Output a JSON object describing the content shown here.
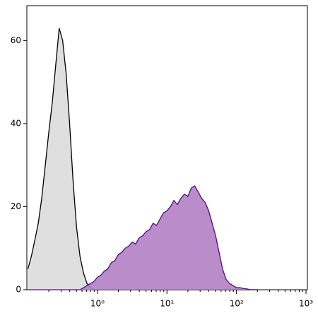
{
  "chart_data": {
    "type": "area",
    "x": [
      0.1,
      0.112,
      0.126,
      0.141,
      0.158,
      0.178,
      0.2,
      0.224,
      0.251,
      0.282,
      0.316,
      0.355,
      0.398,
      0.447,
      0.501,
      0.562,
      0.631,
      0.708,
      0.794,
      0.891,
      1,
      1.12,
      1.26,
      1.41,
      1.58,
      1.78,
      2,
      2.24,
      2.51,
      2.82,
      3.16,
      3.55,
      3.98,
      4.47,
      5.01,
      5.62,
      6.31,
      7.08,
      7.94,
      8.91,
      10,
      11.2,
      12.6,
      14.1,
      15.8,
      17.8,
      20,
      22.4,
      25.1,
      28.2,
      31.6,
      35.5,
      39.8,
      44.7,
      50.1,
      56.2,
      63.1,
      70.8,
      79.4,
      89.1,
      100,
      112,
      126,
      141,
      158,
      178,
      200
    ],
    "series": [
      {
        "color": "#dcdcdc",
        "line_color": "#000000",
        "values": [
          5,
          8,
          12,
          16,
          22,
          30,
          38,
          45,
          54,
          63,
          60,
          52,
          40,
          26,
          15,
          8,
          4,
          1.5,
          0.5,
          0,
          0,
          0,
          0,
          0,
          0,
          0,
          0,
          0,
          0,
          0,
          0,
          0,
          0,
          0,
          0,
          0,
          0,
          0,
          0,
          0,
          0,
          0,
          0,
          0,
          0,
          0,
          0,
          0,
          0,
          0,
          0,
          0,
          0,
          0,
          0,
          0,
          0,
          0,
          0,
          0,
          0,
          0,
          0,
          0,
          0,
          0,
          0
        ]
      },
      {
        "color": "#b380c4",
        "line_color": "#4b0f7d",
        "values": [
          0,
          0,
          0,
          0,
          0,
          0,
          0,
          0,
          0,
          0,
          0,
          0,
          0,
          0,
          0,
          0,
          0.5,
          1,
          1.5,
          2,
          3,
          3.5,
          4.5,
          5,
          6.5,
          7,
          8.5,
          9,
          10,
          10.5,
          11.5,
          11,
          12.5,
          13,
          14,
          14.5,
          16,
          15.5,
          17,
          18.5,
          19,
          20,
          21.5,
          20.5,
          22,
          23,
          22.5,
          24.5,
          25,
          23.5,
          22,
          21,
          19,
          16,
          13,
          9,
          5,
          2.5,
          1.5,
          1,
          0.5,
          0.5,
          0.3,
          0.2,
          0,
          0,
          0
        ]
      }
    ],
    "xscale": "log",
    "xlim": [
      0.0966,
      1047
    ],
    "xticks": [
      {
        "value": 1,
        "label": "10⁰"
      },
      {
        "value": 10,
        "label": "10¹"
      },
      {
        "value": 100,
        "label": "10²"
      },
      {
        "value": 1000,
        "label": "10³"
      }
    ],
    "xminorticks": [
      0.2,
      0.3,
      0.4,
      0.5,
      0.6,
      0.7,
      0.8,
      0.9,
      2,
      3,
      4,
      5,
      6,
      7,
      8,
      9,
      20,
      30,
      40,
      50,
      60,
      70,
      80,
      90,
      200,
      300,
      400,
      500,
      600,
      700,
      800,
      900
    ],
    "ylim": [
      0,
      68.4
    ],
    "yticks": [
      0,
      20,
      40,
      60
    ]
  }
}
